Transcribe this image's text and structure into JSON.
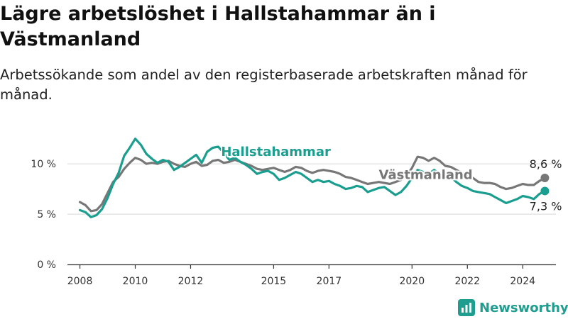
{
  "title": "Lägre arbetslöshet i Hallstahammar än i Västmanland",
  "subtitle": "Arbetssökande som andel av den registerbaserade arbetskraften månad för månad.",
  "brand": {
    "name": "Newsworthy",
    "color": "#1f9e8f"
  },
  "chart_data": {
    "type": "line",
    "y_ticks": [
      {
        "label": "0 %",
        "value": 0
      },
      {
        "label": "5 %",
        "value": 5
      },
      {
        "label": "10 %",
        "value": 10
      }
    ],
    "x_ticks": [
      {
        "label": "2008",
        "value": 2008
      },
      {
        "label": "2010",
        "value": 2010
      },
      {
        "label": "2012",
        "value": 2012
      },
      {
        "label": "2015",
        "value": 2015
      },
      {
        "label": "2017",
        "value": 2017
      },
      {
        "label": "2020",
        "value": 2020
      },
      {
        "label": "2022",
        "value": 2022
      },
      {
        "label": "2024",
        "value": 2024
      }
    ],
    "xlim": [
      2007.55,
      2025.2
    ],
    "ylim": [
      0,
      12.9
    ],
    "grid": true,
    "series": [
      {
        "name": "Västmanland",
        "color": "#777777",
        "end_label": "8,6 %",
        "points": [
          [
            2008.0,
            6.2
          ],
          [
            2008.2,
            5.9
          ],
          [
            2008.4,
            5.3
          ],
          [
            2008.6,
            5.4
          ],
          [
            2008.8,
            6.0
          ],
          [
            2009.0,
            7.1
          ],
          [
            2009.2,
            8.2
          ],
          [
            2009.4,
            8.7
          ],
          [
            2009.6,
            9.5
          ],
          [
            2009.8,
            10.1
          ],
          [
            2010.0,
            10.6
          ],
          [
            2010.2,
            10.4
          ],
          [
            2010.4,
            10.0
          ],
          [
            2010.6,
            10.1
          ],
          [
            2010.8,
            10.0
          ],
          [
            2011.0,
            10.2
          ],
          [
            2011.2,
            10.3
          ],
          [
            2011.4,
            10.0
          ],
          [
            2011.6,
            9.8
          ],
          [
            2011.8,
            9.7
          ],
          [
            2012.0,
            10.0
          ],
          [
            2012.2,
            10.2
          ],
          [
            2012.4,
            9.8
          ],
          [
            2012.6,
            9.9
          ],
          [
            2012.8,
            10.3
          ],
          [
            2013.0,
            10.4
          ],
          [
            2013.2,
            10.1
          ],
          [
            2013.4,
            10.2
          ],
          [
            2013.6,
            10.4
          ],
          [
            2013.8,
            10.2
          ],
          [
            2014.0,
            10.0
          ],
          [
            2014.2,
            9.8
          ],
          [
            2014.4,
            9.5
          ],
          [
            2014.6,
            9.4
          ],
          [
            2014.8,
            9.5
          ],
          [
            2015.0,
            9.6
          ],
          [
            2015.2,
            9.4
          ],
          [
            2015.4,
            9.2
          ],
          [
            2015.6,
            9.4
          ],
          [
            2015.8,
            9.7
          ],
          [
            2016.0,
            9.6
          ],
          [
            2016.2,
            9.3
          ],
          [
            2016.4,
            9.1
          ],
          [
            2016.6,
            9.3
          ],
          [
            2016.8,
            9.4
          ],
          [
            2017.0,
            9.3
          ],
          [
            2017.2,
            9.2
          ],
          [
            2017.4,
            9.0
          ],
          [
            2017.6,
            8.7
          ],
          [
            2017.8,
            8.6
          ],
          [
            2018.0,
            8.4
          ],
          [
            2018.2,
            8.2
          ],
          [
            2018.4,
            8.0
          ],
          [
            2018.6,
            8.1
          ],
          [
            2018.8,
            8.2
          ],
          [
            2019.0,
            8.1
          ],
          [
            2019.2,
            8.0
          ],
          [
            2019.4,
            8.2
          ],
          [
            2019.6,
            8.4
          ],
          [
            2019.8,
            8.8
          ],
          [
            2020.0,
            9.6
          ],
          [
            2020.2,
            10.7
          ],
          [
            2020.4,
            10.6
          ],
          [
            2020.6,
            10.3
          ],
          [
            2020.8,
            10.6
          ],
          [
            2021.0,
            10.3
          ],
          [
            2021.2,
            9.8
          ],
          [
            2021.4,
            9.7
          ],
          [
            2021.6,
            9.4
          ],
          [
            2021.8,
            9.1
          ],
          [
            2022.0,
            8.9
          ],
          [
            2022.2,
            8.6
          ],
          [
            2022.4,
            8.2
          ],
          [
            2022.6,
            8.1
          ],
          [
            2022.8,
            8.1
          ],
          [
            2023.0,
            8.0
          ],
          [
            2023.2,
            7.7
          ],
          [
            2023.4,
            7.5
          ],
          [
            2023.6,
            7.6
          ],
          [
            2023.8,
            7.8
          ],
          [
            2024.0,
            8.0
          ],
          [
            2024.2,
            7.9
          ],
          [
            2024.4,
            7.9
          ],
          [
            2024.6,
            8.3
          ],
          [
            2024.8,
            8.6
          ]
        ]
      },
      {
        "name": "Hallstahammar",
        "color": "#1a9e8f",
        "end_label": "7,3 %",
        "points": [
          [
            2008.0,
            5.4
          ],
          [
            2008.2,
            5.2
          ],
          [
            2008.4,
            4.7
          ],
          [
            2008.6,
            4.9
          ],
          [
            2008.8,
            5.5
          ],
          [
            2009.0,
            6.6
          ],
          [
            2009.2,
            8.0
          ],
          [
            2009.4,
            9.1
          ],
          [
            2009.6,
            10.8
          ],
          [
            2009.8,
            11.6
          ],
          [
            2010.0,
            12.5
          ],
          [
            2010.2,
            11.9
          ],
          [
            2010.4,
            11.0
          ],
          [
            2010.6,
            10.5
          ],
          [
            2010.8,
            10.1
          ],
          [
            2011.0,
            10.4
          ],
          [
            2011.2,
            10.2
          ],
          [
            2011.4,
            9.4
          ],
          [
            2011.6,
            9.7
          ],
          [
            2011.8,
            10.1
          ],
          [
            2012.0,
            10.5
          ],
          [
            2012.2,
            10.9
          ],
          [
            2012.4,
            10.1
          ],
          [
            2012.6,
            11.2
          ],
          [
            2012.8,
            11.6
          ],
          [
            2013.0,
            11.7
          ],
          [
            2013.2,
            11.1
          ],
          [
            2013.4,
            10.4
          ],
          [
            2013.6,
            10.6
          ],
          [
            2013.8,
            10.2
          ],
          [
            2014.0,
            9.9
          ],
          [
            2014.2,
            9.5
          ],
          [
            2014.4,
            9.0
          ],
          [
            2014.6,
            9.2
          ],
          [
            2014.8,
            9.3
          ],
          [
            2015.0,
            9.0
          ],
          [
            2015.2,
            8.4
          ],
          [
            2015.4,
            8.6
          ],
          [
            2015.6,
            8.9
          ],
          [
            2015.8,
            9.2
          ],
          [
            2016.0,
            9.0
          ],
          [
            2016.2,
            8.6
          ],
          [
            2016.4,
            8.2
          ],
          [
            2016.6,
            8.4
          ],
          [
            2016.8,
            8.2
          ],
          [
            2017.0,
            8.3
          ],
          [
            2017.2,
            8.0
          ],
          [
            2017.4,
            7.8
          ],
          [
            2017.6,
            7.5
          ],
          [
            2017.8,
            7.6
          ],
          [
            2018.0,
            7.8
          ],
          [
            2018.2,
            7.7
          ],
          [
            2018.4,
            7.2
          ],
          [
            2018.6,
            7.4
          ],
          [
            2018.8,
            7.6
          ],
          [
            2019.0,
            7.7
          ],
          [
            2019.2,
            7.3
          ],
          [
            2019.4,
            6.9
          ],
          [
            2019.6,
            7.2
          ],
          [
            2019.8,
            7.8
          ],
          [
            2020.0,
            8.6
          ],
          [
            2020.2,
            9.4
          ],
          [
            2020.4,
            9.2
          ],
          [
            2020.6,
            9.0
          ],
          [
            2020.8,
            9.4
          ],
          [
            2021.0,
            8.9
          ],
          [
            2021.2,
            8.5
          ],
          [
            2021.4,
            8.7
          ],
          [
            2021.6,
            8.2
          ],
          [
            2021.8,
            7.8
          ],
          [
            2022.0,
            7.6
          ],
          [
            2022.2,
            7.3
          ],
          [
            2022.4,
            7.2
          ],
          [
            2022.6,
            7.1
          ],
          [
            2022.8,
            7.0
          ],
          [
            2023.0,
            6.7
          ],
          [
            2023.2,
            6.4
          ],
          [
            2023.4,
            6.1
          ],
          [
            2023.6,
            6.3
          ],
          [
            2023.8,
            6.5
          ],
          [
            2024.0,
            6.8
          ],
          [
            2024.2,
            6.7
          ],
          [
            2024.4,
            6.5
          ],
          [
            2024.6,
            7.0
          ],
          [
            2024.8,
            7.3
          ]
        ]
      }
    ],
    "series_label_positions": [
      {
        "series": "Hallstahammar",
        "x": 2013.1,
        "y": 10.8
      },
      {
        "series": "Västmanland",
        "x": 2018.8,
        "y": 8.5
      }
    ]
  }
}
